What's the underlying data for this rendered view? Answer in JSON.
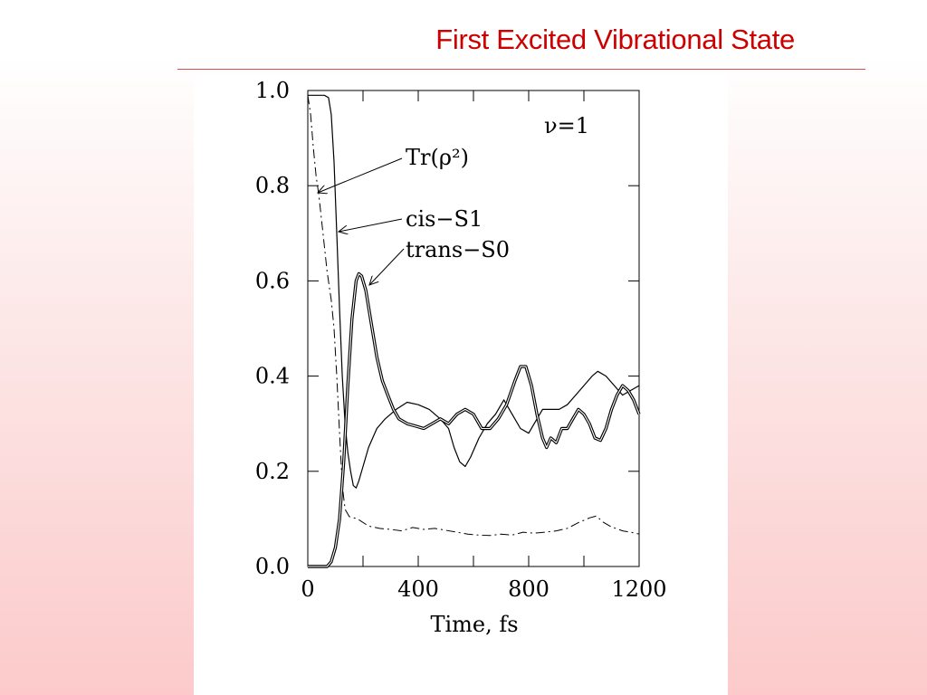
{
  "slide": {
    "title": "First Excited Vibrational State"
  },
  "chart_data": {
    "type": "line",
    "title": "",
    "xlabel": "Time, fs",
    "ylabel": "",
    "xlim": [
      0,
      1200
    ],
    "ylim": [
      0.0,
      1.0
    ],
    "x_ticks": [
      "0",
      "400",
      "800",
      "1200"
    ],
    "y_ticks": [
      "0.0",
      "0.2",
      "0.4",
      "0.6",
      "0.8",
      "1.0"
    ],
    "grid": false,
    "annotation": "ν=1",
    "series_labels": {
      "purity": "Tr(ρ²)",
      "cis": "cis−S1",
      "trans": "trans−S0"
    },
    "series": [
      {
        "name": "Tr(ρ²)",
        "style": "dash-dot",
        "points": [
          [
            0,
            0.99
          ],
          [
            10,
            0.95
          ],
          [
            20,
            0.88
          ],
          [
            30,
            0.82
          ],
          [
            40,
            0.78
          ],
          [
            55,
            0.7
          ],
          [
            70,
            0.62
          ],
          [
            85,
            0.56
          ],
          [
            95,
            0.5
          ],
          [
            105,
            0.4
          ],
          [
            115,
            0.28
          ],
          [
            125,
            0.17
          ],
          [
            135,
            0.12
          ],
          [
            150,
            0.105
          ],
          [
            180,
            0.1
          ],
          [
            220,
            0.085
          ],
          [
            260,
            0.08
          ],
          [
            300,
            0.078
          ],
          [
            340,
            0.075
          ],
          [
            380,
            0.082
          ],
          [
            420,
            0.078
          ],
          [
            460,
            0.08
          ],
          [
            500,
            0.076
          ],
          [
            540,
            0.072
          ],
          [
            580,
            0.068
          ],
          [
            620,
            0.066
          ],
          [
            660,
            0.065
          ],
          [
            700,
            0.068
          ],
          [
            740,
            0.066
          ],
          [
            780,
            0.072
          ],
          [
            820,
            0.07
          ],
          [
            860,
            0.072
          ],
          [
            900,
            0.075
          ],
          [
            940,
            0.08
          ],
          [
            980,
            0.092
          ],
          [
            1020,
            0.102
          ],
          [
            1045,
            0.106
          ],
          [
            1070,
            0.093
          ],
          [
            1100,
            0.083
          ],
          [
            1140,
            0.075
          ],
          [
            1170,
            0.072
          ],
          [
            1200,
            0.068
          ]
        ]
      },
      {
        "name": "cis−S1",
        "style": "solid",
        "points": [
          [
            0,
            0.99
          ],
          [
            60,
            0.99
          ],
          [
            75,
            0.985
          ],
          [
            85,
            0.95
          ],
          [
            95,
            0.85
          ],
          [
            105,
            0.7
          ],
          [
            115,
            0.54
          ],
          [
            125,
            0.4
          ],
          [
            135,
            0.3
          ],
          [
            145,
            0.24
          ],
          [
            155,
            0.2
          ],
          [
            165,
            0.17
          ],
          [
            175,
            0.165
          ],
          [
            185,
            0.18
          ],
          [
            200,
            0.21
          ],
          [
            220,
            0.25
          ],
          [
            250,
            0.29
          ],
          [
            280,
            0.31
          ],
          [
            320,
            0.33
          ],
          [
            360,
            0.345
          ],
          [
            400,
            0.34
          ],
          [
            440,
            0.33
          ],
          [
            480,
            0.31
          ],
          [
            510,
            0.29
          ],
          [
            530,
            0.25
          ],
          [
            550,
            0.22
          ],
          [
            570,
            0.21
          ],
          [
            590,
            0.23
          ],
          [
            620,
            0.27
          ],
          [
            650,
            0.3
          ],
          [
            680,
            0.32
          ],
          [
            710,
            0.35
          ],
          [
            740,
            0.32
          ],
          [
            770,
            0.29
          ],
          [
            800,
            0.28
          ],
          [
            820,
            0.3
          ],
          [
            850,
            0.33
          ],
          [
            880,
            0.33
          ],
          [
            910,
            0.33
          ],
          [
            940,
            0.34
          ],
          [
            970,
            0.36
          ],
          [
            1000,
            0.38
          ],
          [
            1030,
            0.4
          ],
          [
            1050,
            0.41
          ],
          [
            1080,
            0.4
          ],
          [
            1110,
            0.38
          ],
          [
            1140,
            0.36
          ],
          [
            1170,
            0.37
          ],
          [
            1200,
            0.38
          ]
        ]
      },
      {
        "name": "trans−S0",
        "style": "thick",
        "points": [
          [
            0,
            0.0
          ],
          [
            70,
            0.0
          ],
          [
            85,
            0.01
          ],
          [
            100,
            0.04
          ],
          [
            115,
            0.1
          ],
          [
            130,
            0.22
          ],
          [
            145,
            0.38
          ],
          [
            160,
            0.52
          ],
          [
            175,
            0.6
          ],
          [
            185,
            0.615
          ],
          [
            195,
            0.61
          ],
          [
            210,
            0.58
          ],
          [
            230,
            0.51
          ],
          [
            250,
            0.44
          ],
          [
            270,
            0.39
          ],
          [
            290,
            0.36
          ],
          [
            310,
            0.33
          ],
          [
            330,
            0.31
          ],
          [
            360,
            0.3
          ],
          [
            390,
            0.295
          ],
          [
            420,
            0.29
          ],
          [
            450,
            0.3
          ],
          [
            480,
            0.31
          ],
          [
            510,
            0.3
          ],
          [
            540,
            0.32
          ],
          [
            570,
            0.33
          ],
          [
            600,
            0.32
          ],
          [
            630,
            0.29
          ],
          [
            660,
            0.29
          ],
          [
            690,
            0.31
          ],
          [
            720,
            0.34
          ],
          [
            750,
            0.39
          ],
          [
            770,
            0.42
          ],
          [
            790,
            0.42
          ],
          [
            810,
            0.38
          ],
          [
            830,
            0.32
          ],
          [
            850,
            0.27
          ],
          [
            865,
            0.25
          ],
          [
            880,
            0.27
          ],
          [
            900,
            0.26
          ],
          [
            920,
            0.29
          ],
          [
            940,
            0.29
          ],
          [
            960,
            0.31
          ],
          [
            980,
            0.33
          ],
          [
            1000,
            0.32
          ],
          [
            1020,
            0.3
          ],
          [
            1040,
            0.27
          ],
          [
            1060,
            0.265
          ],
          [
            1080,
            0.29
          ],
          [
            1100,
            0.33
          ],
          [
            1120,
            0.36
          ],
          [
            1140,
            0.38
          ],
          [
            1160,
            0.37
          ],
          [
            1180,
            0.35
          ],
          [
            1200,
            0.32
          ]
        ]
      }
    ]
  }
}
